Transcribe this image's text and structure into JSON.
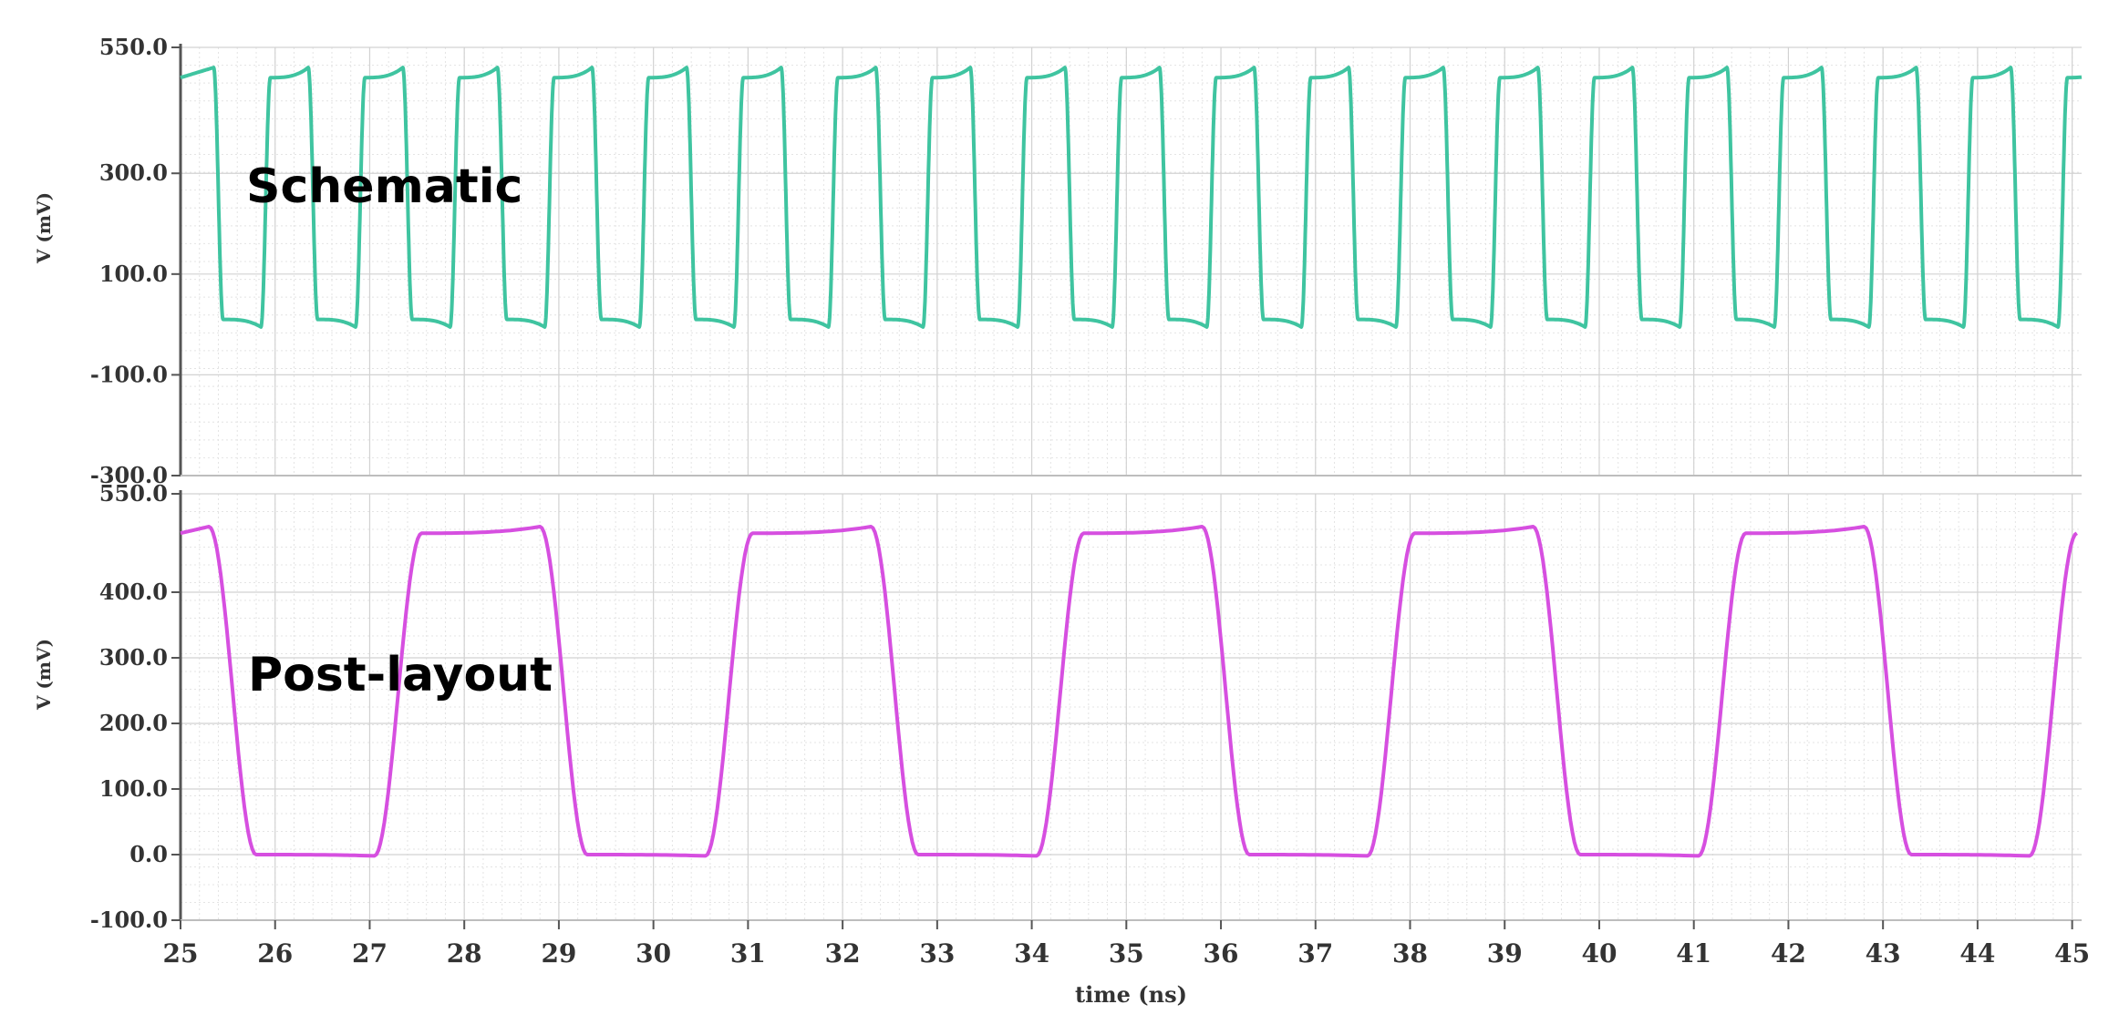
{
  "chart_data": [
    {
      "type": "line",
      "title": "",
      "annotation": "Schematic",
      "ylabel": "V (mV)",
      "xlabel": "",
      "xlim": [
        25,
        45.1
      ],
      "ylim": [
        -300,
        550
      ],
      "yticks": [
        "550.0",
        "300.0",
        "100.0",
        "-100.0",
        "-300.0"
      ],
      "ytick_values": [
        550,
        300,
        100,
        -100,
        -300
      ],
      "color": "#3fc4a0",
      "grid": true,
      "waveform": {
        "period_ns": 1.0,
        "first_fall_ns": 25.35,
        "high_mv": 490,
        "high_peak_mv": 510,
        "low_mv": 10,
        "low_dip_mv": -5,
        "transition_ns": 0.1
      }
    },
    {
      "type": "line",
      "title": "",
      "annotation": "Post-layout",
      "ylabel": "V (mV)",
      "xlabel": "time (ns)",
      "xlim": [
        25,
        45.1
      ],
      "ylim": [
        -100,
        550
      ],
      "yticks": [
        "550.0",
        "400.0",
        "300.0",
        "200.0",
        "100.0",
        "0.0",
        "-100.0"
      ],
      "ytick_values": [
        550,
        400,
        300,
        200,
        100,
        0,
        -100
      ],
      "xticks": [
        "25",
        "26",
        "27",
        "28",
        "29",
        "30",
        "31",
        "32",
        "33",
        "34",
        "35",
        "36",
        "37",
        "38",
        "39",
        "40",
        "41",
        "42",
        "43",
        "44",
        "45"
      ],
      "xtick_values": [
        25,
        26,
        27,
        28,
        29,
        30,
        31,
        32,
        33,
        34,
        35,
        36,
        37,
        38,
        39,
        40,
        41,
        42,
        43,
        44,
        45
      ],
      "color": "#d64fe0",
      "grid": true,
      "waveform": {
        "period_ns": 3.5,
        "first_fall_ns": 25.3,
        "high_mv": 490,
        "high_peak_mv": 500,
        "low_mv": 0,
        "low_dip_mv": -2,
        "transition_ns": 0.5
      }
    }
  ]
}
